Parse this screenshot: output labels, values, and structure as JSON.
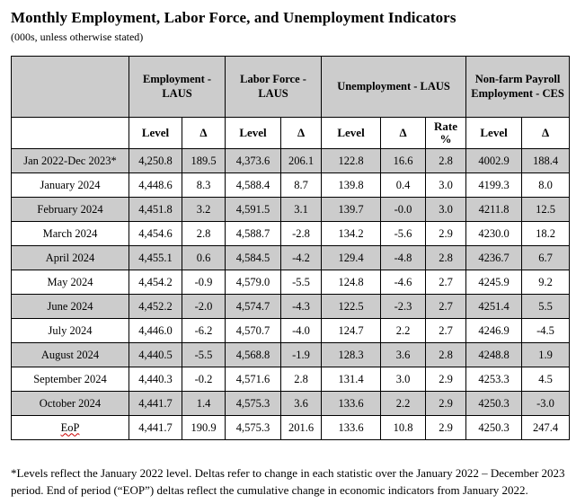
{
  "page": {
    "title": "Monthly Employment, Labor Force, and Unemployment Indicators",
    "subtitle": "(000s, unless otherwise stated)",
    "footnote": "*Levels reflect the January 2022 level. Deltas refer to change in each statistic over the January 2022 – December 2023 period. End of period (“EOP”) deltas reflect the cumulative change in economic indicators from January 2022."
  },
  "colors": {
    "shade": "#CCCCCC",
    "border": "#000000",
    "text": "#000000",
    "spellcheck_red": "#CC0000"
  },
  "table": {
    "column_groups": [
      {
        "label": "",
        "span": 1
      },
      {
        "label": "Employment - LAUS",
        "span": 2
      },
      {
        "label": "Labor Force - LAUS",
        "span": 2
      },
      {
        "label": "Unemployment - LAUS",
        "span": 3
      },
      {
        "label": "Non-farm Payroll Employment - CES",
        "span": 2
      }
    ],
    "sub_headers": [
      "",
      "Level",
      "Δ",
      "Level",
      "Δ",
      "Level",
      "Δ",
      "Rate %",
      "Level",
      "Δ"
    ],
    "rows": [
      {
        "label": "Jan 2022-Dec 2023*",
        "shaded": true,
        "spellcheck_underline": false,
        "values": [
          "4,250.8",
          "189.5",
          "4,373.6",
          "206.1",
          "122.8",
          "16.6",
          "2.8",
          "4002.9",
          "188.4"
        ]
      },
      {
        "label": "January 2024",
        "shaded": false,
        "spellcheck_underline": false,
        "values": [
          "4,448.6",
          "8.3",
          "4,588.4",
          "8.7",
          "139.8",
          "0.4",
          "3.0",
          "4199.3",
          "8.0"
        ]
      },
      {
        "label": "February 2024",
        "shaded": true,
        "spellcheck_underline": false,
        "values": [
          "4,451.8",
          "3.2",
          "4,591.5",
          "3.1",
          "139.7",
          "-0.0",
          "3.0",
          "4211.8",
          "12.5"
        ]
      },
      {
        "label": "March 2024",
        "shaded": false,
        "spellcheck_underline": false,
        "values": [
          "4,454.6",
          "2.8",
          "4,588.7",
          "-2.8",
          "134.2",
          "-5.6",
          "2.9",
          "4230.0",
          "18.2"
        ]
      },
      {
        "label": "April 2024",
        "shaded": true,
        "spellcheck_underline": false,
        "values": [
          "4,455.1",
          "0.6",
          "4,584.5",
          "-4.2",
          "129.4",
          "-4.8",
          "2.8",
          "4236.7",
          "6.7"
        ]
      },
      {
        "label": "May 2024",
        "shaded": false,
        "spellcheck_underline": false,
        "values": [
          "4,454.2",
          "-0.9",
          "4,579.0",
          "-5.5",
          "124.8",
          "-4.6",
          "2.7",
          "4245.9",
          "9.2"
        ]
      },
      {
        "label": "June 2024",
        "shaded": true,
        "spellcheck_underline": false,
        "values": [
          "4,452.2",
          "-2.0",
          "4,574.7",
          "-4.3",
          "122.5",
          "-2.3",
          "2.7",
          "4251.4",
          "5.5"
        ]
      },
      {
        "label": "July 2024",
        "shaded": false,
        "spellcheck_underline": false,
        "values": [
          "4,446.0",
          "-6.2",
          "4,570.7",
          "-4.0",
          "124.7",
          "2.2",
          "2.7",
          "4246.9",
          "-4.5"
        ]
      },
      {
        "label": "August 2024",
        "shaded": true,
        "spellcheck_underline": false,
        "values": [
          "4,440.5",
          "-5.5",
          "4,568.8",
          "-1.9",
          "128.3",
          "3.6",
          "2.8",
          "4248.8",
          "1.9"
        ]
      },
      {
        "label": "September 2024",
        "shaded": false,
        "spellcheck_underline": false,
        "values": [
          "4,440.3",
          "-0.2",
          "4,571.6",
          "2.8",
          "131.4",
          "3.0",
          "2.9",
          "4253.3",
          "4.5"
        ]
      },
      {
        "label": "October 2024",
        "shaded": true,
        "spellcheck_underline": false,
        "values": [
          "4,441.7",
          "1.4",
          "4,575.3",
          "3.6",
          "133.6",
          "2.2",
          "2.9",
          "4250.3",
          "-3.0"
        ]
      },
      {
        "label": "EoP",
        "shaded": false,
        "spellcheck_underline": true,
        "values": [
          "4,441.7",
          "190.9",
          "4,575.3",
          "201.6",
          "133.6",
          "10.8",
          "2.9",
          "4250.3",
          "247.4"
        ]
      }
    ]
  }
}
